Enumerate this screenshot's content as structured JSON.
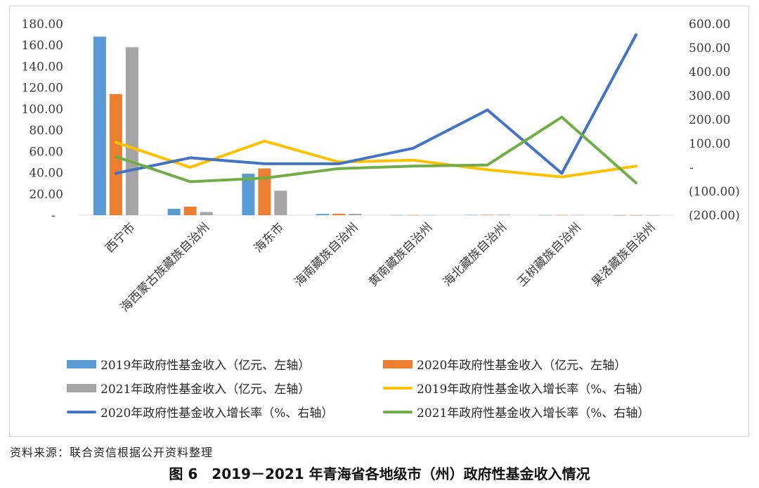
{
  "chart_data": {
    "type": "bar+line",
    "categories": [
      "西宁市",
      "海西蒙古族藏族自治州",
      "海东市",
      "海南藏族自治州",
      "黄南藏族自治州",
      "海北藏族自治州",
      "玉树藏族自治州",
      "果洛藏族自治州"
    ],
    "left_axis": {
      "range": [
        0,
        180
      ],
      "ticks": [
        "-",
        "20.00",
        "40.00",
        "60.00",
        "80.00",
        "100.00",
        "120.00",
        "140.00",
        "160.00",
        "180.00"
      ]
    },
    "right_axis": {
      "range": [
        -200,
        600
      ],
      "ticks": [
        "(200.00)",
        "(100.00)",
        "-",
        "100.00",
        "200.00",
        "300.00",
        "400.00",
        "500.00",
        "600.00"
      ]
    },
    "bar_series": [
      {
        "name": "2019年政府性基金收入（亿元、左轴）",
        "color": "#5b9bd5",
        "values": [
          168,
          6,
          39,
          1.2,
          0.2,
          0.3,
          0.2,
          0.1
        ]
      },
      {
        "name": "2020年政府性基金收入（亿元、左轴）",
        "color": "#ed7d31",
        "values": [
          114,
          8,
          44,
          1.4,
          0.2,
          0.4,
          0.2,
          0.1
        ]
      },
      {
        "name": "2021年政府性基金收入（亿元、左轴）",
        "color": "#a5a5a5",
        "values": [
          158,
          3,
          23,
          1.3,
          0.2,
          0.5,
          0.2,
          0.1
        ]
      }
    ],
    "line_series": [
      {
        "name": "2019年政府性基金收入增长率（%、右轴）",
        "color": "#ffc000",
        "values": [
          105,
          0,
          110,
          22,
          30,
          -10,
          -40,
          5
        ]
      },
      {
        "name": "2020年政府性基金收入增长率（%、右轴）",
        "color": "#4472c4",
        "values": [
          -25,
          40,
          15,
          15,
          80,
          240,
          -25,
          555
        ]
      },
      {
        "name": "2021年政府性基金收入增长率（%、右轴）",
        "color": "#70ad47",
        "values": [
          45,
          -60,
          -45,
          -5,
          5,
          10,
          210,
          -65
        ]
      }
    ]
  },
  "source_text": "资料来源：联合资信根据公开资料整理",
  "caption": "图 6　2019－2021 年青海省各地级市（州）政府性基金收入情况"
}
